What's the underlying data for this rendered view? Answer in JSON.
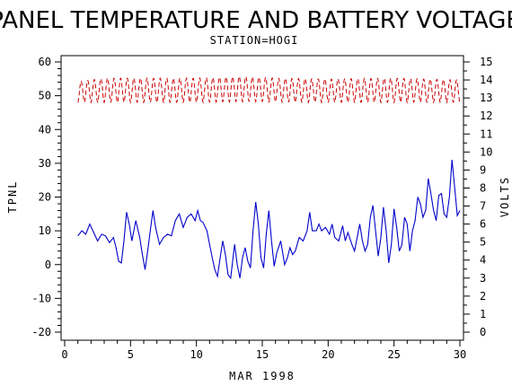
{
  "chart_data": {
    "type": "line",
    "title": "PANEL TEMPERATURE AND BATTERY VOLTAGE",
    "subtitle": "STATION=HOGI",
    "xlabel": "MAR 1998",
    "ylabel_left": "TPNL",
    "ylabel_right": "VOLTS",
    "xlim": [
      0,
      30
    ],
    "ylim_left": [
      -20,
      60
    ],
    "ylim_right": [
      0,
      15
    ],
    "x_ticks": [
      "0",
      "5",
      "10",
      "15",
      "20",
      "25",
      "30"
    ],
    "y_left_ticks": [
      "-20",
      "-10",
      "0",
      "10",
      "20",
      "30",
      "40",
      "50",
      "60"
    ],
    "y_right_ticks": [
      "0",
      "1",
      "2",
      "3",
      "4",
      "5",
      "6",
      "7",
      "8",
      "9",
      "10",
      "11",
      "12",
      "13",
      "14",
      "15"
    ],
    "series": [
      {
        "axis": "left",
        "color": "#0000cc",
        "style": "solid",
        "points": [
          [
            1.0,
            8.5
          ],
          [
            1.3,
            10.0
          ],
          [
            1.6,
            9.0
          ],
          [
            1.9,
            12.0
          ],
          [
            2.2,
            9.5
          ],
          [
            2.5,
            7.0
          ],
          [
            2.8,
            9.0
          ],
          [
            3.1,
            8.5
          ],
          [
            3.4,
            6.5
          ],
          [
            3.7,
            8.0
          ],
          [
            3.9,
            5.0
          ],
          [
            4.1,
            1.0
          ],
          [
            4.3,
            0.5
          ],
          [
            4.5,
            7.0
          ],
          [
            4.7,
            15.5
          ],
          [
            4.9,
            12.0
          ],
          [
            5.1,
            7.0
          ],
          [
            5.4,
            13.0
          ],
          [
            5.7,
            8.0
          ],
          [
            5.9,
            3.0
          ],
          [
            6.1,
            -1.5
          ],
          [
            6.3,
            4.0
          ],
          [
            6.5,
            10.0
          ],
          [
            6.7,
            16.0
          ],
          [
            6.9,
            11.0
          ],
          [
            7.2,
            6.0
          ],
          [
            7.5,
            8.0
          ],
          [
            7.8,
            9.0
          ],
          [
            8.1,
            8.5
          ],
          [
            8.4,
            13.0
          ],
          [
            8.7,
            15.0
          ],
          [
            9.0,
            11.0
          ],
          [
            9.3,
            14.0
          ],
          [
            9.6,
            15.0
          ],
          [
            9.9,
            13.0
          ],
          [
            10.1,
            16.0
          ],
          [
            10.3,
            13.0
          ],
          [
            10.5,
            12.5
          ],
          [
            10.8,
            10.0
          ],
          [
            11.0,
            6.0
          ],
          [
            11.2,
            2.0
          ],
          [
            11.4,
            -1.5
          ],
          [
            11.6,
            -3.5
          ],
          [
            11.8,
            2.0
          ],
          [
            12.0,
            7.0
          ],
          [
            12.2,
            3.0
          ],
          [
            12.4,
            -3.0
          ],
          [
            12.6,
            -4.0
          ],
          [
            12.9,
            6.0
          ],
          [
            13.1,
            0.0
          ],
          [
            13.3,
            -4.0
          ],
          [
            13.5,
            2.0
          ],
          [
            13.7,
            5.0
          ],
          [
            13.9,
            1.0
          ],
          [
            14.1,
            -1.0
          ],
          [
            14.3,
            10.0
          ],
          [
            14.5,
            18.5
          ],
          [
            14.7,
            12.0
          ],
          [
            14.9,
            2.0
          ],
          [
            15.1,
            -1.0
          ],
          [
            15.3,
            9.0
          ],
          [
            15.5,
            16.0
          ],
          [
            15.7,
            7.0
          ],
          [
            15.9,
            -0.5
          ],
          [
            16.1,
            3.5
          ],
          [
            16.4,
            7.0
          ],
          [
            16.7,
            0.0
          ],
          [
            16.9,
            2.0
          ],
          [
            17.1,
            5.0
          ],
          [
            17.3,
            3.0
          ],
          [
            17.5,
            4.0
          ],
          [
            17.8,
            8.0
          ],
          [
            18.1,
            7.0
          ],
          [
            18.4,
            10.0
          ],
          [
            18.6,
            15.5
          ],
          [
            18.8,
            10.0
          ],
          [
            19.1,
            10.0
          ],
          [
            19.3,
            12.0
          ],
          [
            19.5,
            10.0
          ],
          [
            19.8,
            11.0
          ],
          [
            20.1,
            9.0
          ],
          [
            20.3,
            12.0
          ],
          [
            20.5,
            8.0
          ],
          [
            20.8,
            7.0
          ],
          [
            21.1,
            11.5
          ],
          [
            21.3,
            7.0
          ],
          [
            21.5,
            9.5
          ],
          [
            21.8,
            6.0
          ],
          [
            22.0,
            4.0
          ],
          [
            22.2,
            8.0
          ],
          [
            22.4,
            12.0
          ],
          [
            22.6,
            7.0
          ],
          [
            22.8,
            4.0
          ],
          [
            23.0,
            6.0
          ],
          [
            23.2,
            14.0
          ],
          [
            23.4,
            17.5
          ],
          [
            23.6,
            10.0
          ],
          [
            23.8,
            2.5
          ],
          [
            24.0,
            8.0
          ],
          [
            24.2,
            17.0
          ],
          [
            24.4,
            10.0
          ],
          [
            24.6,
            0.5
          ],
          [
            24.8,
            6.0
          ],
          [
            25.0,
            16.5
          ],
          [
            25.2,
            11.0
          ],
          [
            25.4,
            4.0
          ],
          [
            25.6,
            6.0
          ],
          [
            25.8,
            14.0
          ],
          [
            26.0,
            12.0
          ],
          [
            26.2,
            4.0
          ],
          [
            26.4,
            10.0
          ],
          [
            26.6,
            13.0
          ],
          [
            26.8,
            20.0
          ],
          [
            27.0,
            18.0
          ],
          [
            27.2,
            14.0
          ],
          [
            27.4,
            16.0
          ],
          [
            27.6,
            25.5
          ],
          [
            27.8,
            21.0
          ],
          [
            28.0,
            16.0
          ],
          [
            28.2,
            13.0
          ],
          [
            28.4,
            20.5
          ],
          [
            28.6,
            21.0
          ],
          [
            28.8,
            15.0
          ],
          [
            29.0,
            14.0
          ],
          [
            29.2,
            20.0
          ],
          [
            29.4,
            31.0
          ],
          [
            29.6,
            23.0
          ],
          [
            29.8,
            14.5
          ],
          [
            30.0,
            16.0
          ]
        ]
      },
      {
        "axis": "right",
        "color": "#cc0000",
        "style": "dashed",
        "oscillation": {
          "x_start": 1.0,
          "x_end": 30.0,
          "cycles_per_day": 2,
          "low": [
            [
              1.0,
              12.75
            ],
            [
              3.0,
              12.75
            ],
            [
              6.0,
              12.75
            ],
            [
              10.0,
              12.75
            ],
            [
              14.0,
              12.8
            ],
            [
              18.0,
              12.75
            ],
            [
              22.0,
              12.75
            ],
            [
              26.0,
              12.75
            ],
            [
              30.0,
              12.75
            ]
          ],
          "high": [
            [
              1.0,
              13.9
            ],
            [
              3.0,
              14.1
            ],
            [
              6.0,
              14.1
            ],
            [
              10.0,
              14.1
            ],
            [
              13.5,
              14.2
            ],
            [
              16.0,
              14.1
            ],
            [
              20.0,
              14.05
            ],
            [
              25.0,
              14.1
            ],
            [
              30.0,
              14.0
            ]
          ]
        }
      }
    ]
  }
}
